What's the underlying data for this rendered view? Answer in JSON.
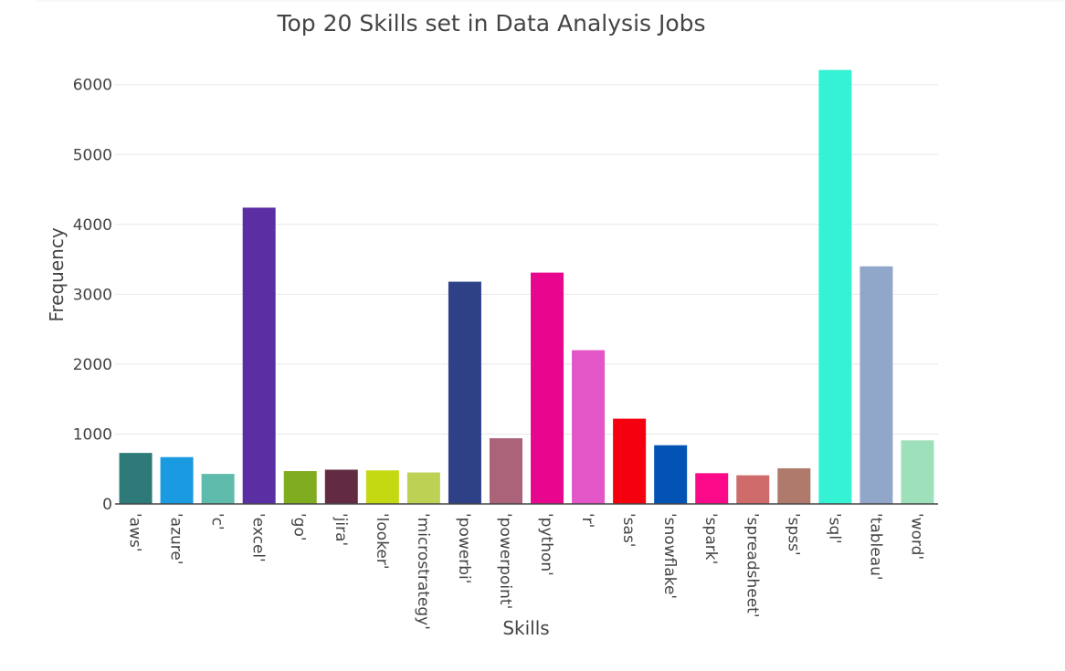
{
  "chart_data": {
    "type": "bar",
    "title": "Top 20 Skills set in Data Analysis Jobs",
    "xlabel": "Skills",
    "ylabel": "Frequency",
    "ylim": [
      0,
      6300
    ],
    "yticks": [
      0,
      1000,
      2000,
      3000,
      4000,
      5000,
      6000
    ],
    "grid": true,
    "legend": "none",
    "categories": [
      "'aws'",
      "'azure'",
      "'c'",
      "'excel'",
      "'go'",
      "'jira'",
      "'looker'",
      "'microstrategy'",
      "'powerbi'",
      "'powerpoint'",
      "'python'",
      "'r'",
      "'sas'",
      "'snowflake'",
      "'spark'",
      "'spreadsheet'",
      "'spss'",
      "'sql'",
      "'tableau'",
      "'word'"
    ],
    "values": [
      730,
      670,
      430,
      4240,
      470,
      490,
      480,
      450,
      3180,
      940,
      3310,
      2200,
      1220,
      840,
      440,
      410,
      510,
      6210,
      3400,
      910
    ],
    "colors": [
      "#2e7a78",
      "#1a9ae0",
      "#5fbcad",
      "#5a2fa3",
      "#80ad1f",
      "#622b42",
      "#c5d913",
      "#bdd154",
      "#2e4187",
      "#ab6379",
      "#e8068e",
      "#e356c8",
      "#f5000f",
      "#0253b3",
      "#fc0a8a",
      "#cf6b6b",
      "#af7a6c",
      "#34f2d3",
      "#91a7ca",
      "#9ee0b9"
    ]
  }
}
